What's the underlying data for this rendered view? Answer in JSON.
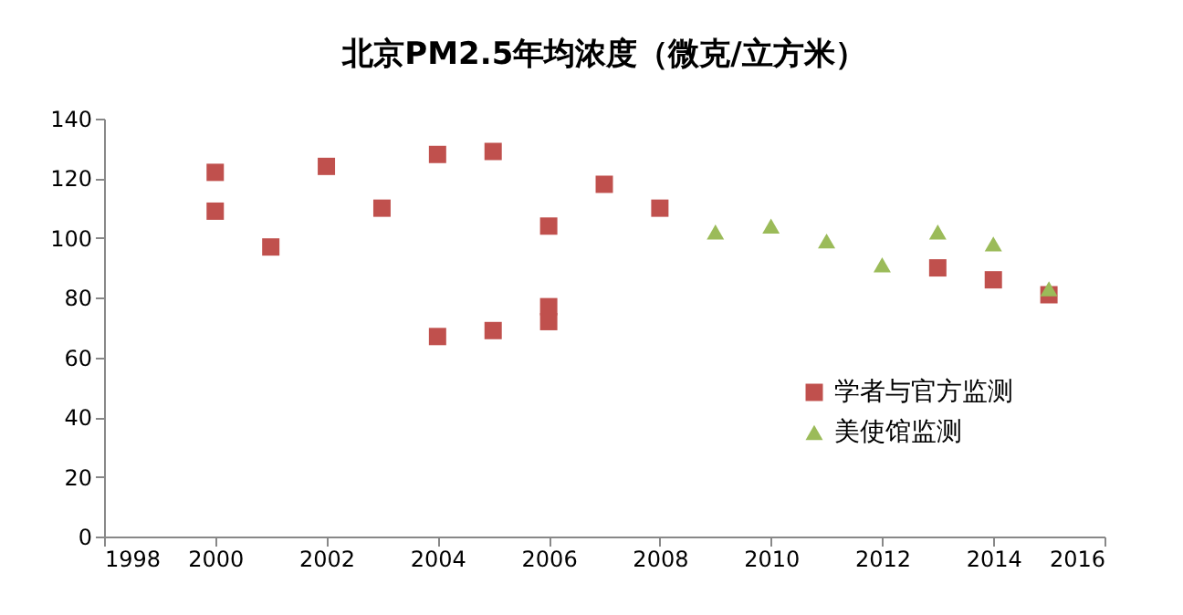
{
  "chart_data": {
    "type": "scatter",
    "title": "北京PM2.5年均浓度（微克/立方米）",
    "xlim": [
      1998,
      2016
    ],
    "xticks": [
      1998,
      2000,
      2002,
      2004,
      2006,
      2008,
      2010,
      2012,
      2014,
      2016
    ],
    "ylim": [
      0,
      140
    ],
    "yticks": [
      0,
      20,
      40,
      60,
      80,
      100,
      120,
      140
    ],
    "grid": false,
    "legend": "bottom right",
    "series": [
      {
        "name": "学者与官方监测",
        "color": "#c0504d",
        "marker": "square",
        "x": [
          2000,
          2000,
          2001,
          2002,
          2003,
          2004,
          2004,
          2005,
          2005,
          2006,
          2006,
          2006,
          2007,
          2008,
          2013,
          2014,
          2015
        ],
        "values": [
          122,
          109,
          97,
          124,
          110,
          128,
          67,
          129,
          69,
          104,
          77,
          72,
          118,
          110,
          90,
          86,
          81
        ]
      },
      {
        "name": "美使馆监测",
        "color": "#9bbb59",
        "marker": "triangle",
        "x": [
          2009,
          2010,
          2011,
          2012,
          2013,
          2014,
          2015
        ],
        "values": [
          102,
          104,
          99,
          91,
          102,
          98,
          83
        ]
      }
    ]
  }
}
